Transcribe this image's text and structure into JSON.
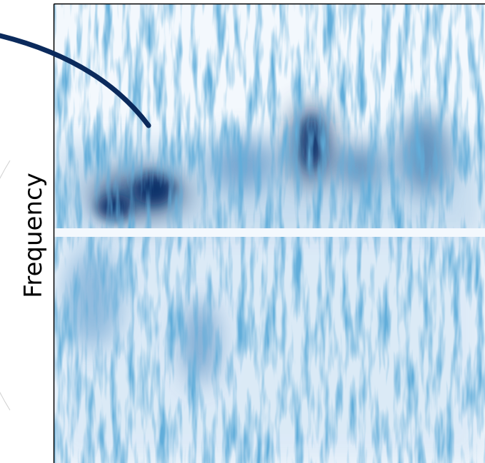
{
  "axis": {
    "y_label": "Frequency"
  }
}
